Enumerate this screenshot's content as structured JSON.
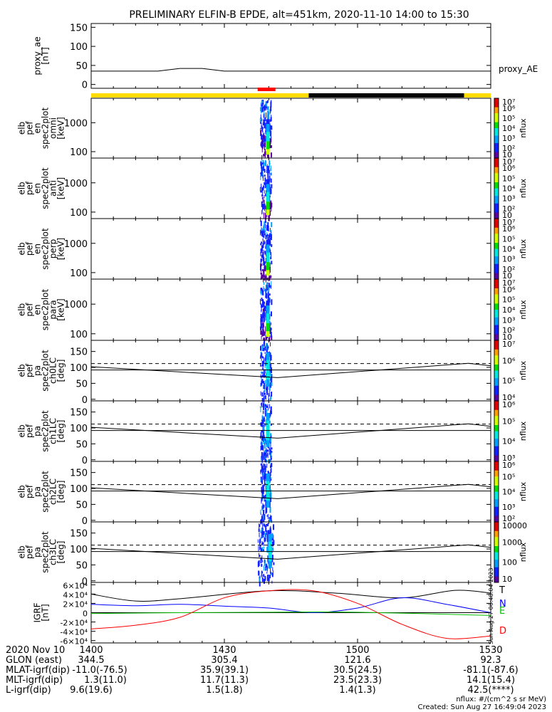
{
  "title": "PRELIMINARY ELFIN-B EPDE, alt=451km, 2020-11-10 14:00 to 15:30",
  "bottom_table": {
    "header_label": "2020 Nov 10",
    "time_ticks": [
      "1400",
      "1430",
      "1500",
      "1530"
    ],
    "rows": [
      {
        "label": "GLON (east)",
        "values": [
          "344.5",
          "305.4",
          "121.6",
          "92.3"
        ]
      },
      {
        "label": "MLAT-igrf(dip)",
        "values": [
          "-11.0(-76.5)",
          "35.9(39.1)",
          "30.5(24.5)",
          "-81.1(-87.6)"
        ]
      },
      {
        "label": "MLT-igrf(dip)",
        "values": [
          "1.3(11.0)",
          "11.7(11.3)",
          "23.5(23.3)",
          "14.1(15.4)"
        ]
      },
      {
        "label": "L-igrf(dip)",
        "values": [
          "9.6(19.6)",
          "1.5(1.8)",
          "1.4(1.3)",
          "42.5(****)"
        ]
      }
    ]
  },
  "footer": {
    "units": "nflux: #/(cm^2 s sr MeV)",
    "created": "Created: Sun Aug 27 16:49:04 2023",
    "side_stamp": "Sun Aug 27 06:48:04 2023"
  },
  "colors": {
    "day_bar": "#ffdd00",
    "night_bar": "#000000",
    "science_zone": "#ff0000",
    "trace_T": "#000000",
    "trace_N": "#0000ff",
    "trace_E": "#00c000",
    "trace_D": "#ff0000"
  },
  "bars": {
    "segments": [
      {
        "start_min": 0,
        "end_min": 49,
        "state": "day"
      },
      {
        "start_min": 49,
        "end_min": 84,
        "state": "night"
      },
      {
        "start_min": 84,
        "end_min": 90,
        "state": "day"
      }
    ],
    "science_zone": {
      "start_min": 37.5,
      "end_min": 41.5
    }
  },
  "chart_data": [
    {
      "type": "line",
      "panel": "proxy_ae",
      "ylabel": [
        "proxy_ae",
        "[nT]"
      ],
      "legend": "proxy_AE",
      "yticks": [
        "0",
        "50",
        "100",
        "150"
      ],
      "ylim": [
        -10,
        160
      ],
      "x_min": [
        0,
        15,
        20,
        25,
        30,
        90
      ],
      "y": [
        35,
        35,
        42,
        42,
        35,
        35
      ]
    },
    {
      "type": "heatmap",
      "panel": "spec_omni",
      "ylabel": [
        "elb",
        "pef",
        "en",
        "spec2plot",
        "omni",
        "[keV]"
      ],
      "yscale": "log",
      "yticks": [
        "100",
        "1000"
      ],
      "ylim": [
        60,
        7000
      ],
      "colorbar": {
        "label": "nflux",
        "ticks": [
          "10",
          "10²",
          "10³",
          "10⁴",
          "10⁵",
          "10⁶",
          "10⁷"
        ]
      },
      "active_interval_min": [
        38,
        40.5
      ]
    },
    {
      "type": "heatmap",
      "panel": "spec_anti",
      "ylabel": [
        "elb",
        "pef",
        "en",
        "spec2plot",
        "anti",
        "[keV]"
      ],
      "yscale": "log",
      "yticks": [
        "100",
        "1000"
      ],
      "ylim": [
        60,
        7000
      ],
      "colorbar": {
        "label": "nflux",
        "ticks": [
          "10",
          "10²",
          "10³",
          "10⁴",
          "10⁵",
          "10⁶",
          "10⁷"
        ]
      },
      "active_interval_min": [
        38,
        40.5
      ]
    },
    {
      "type": "heatmap",
      "panel": "spec_perp",
      "ylabel": [
        "elb",
        "pef",
        "en",
        "spec2plot",
        "perp",
        "[keV]"
      ],
      "yscale": "log",
      "yticks": [
        "100",
        "1000"
      ],
      "ylim": [
        60,
        7000
      ],
      "colorbar": {
        "label": "nflux",
        "ticks": [
          "10",
          "10²",
          "10³",
          "10⁴",
          "10⁵",
          "10⁶",
          "10⁷"
        ]
      },
      "active_interval_min": [
        38,
        40.5
      ]
    },
    {
      "type": "heatmap",
      "panel": "spec_para",
      "ylabel": [
        "elb",
        "pef",
        "en",
        "spec2plot",
        "para",
        "[keV]"
      ],
      "yscale": "log",
      "yticks": [
        "100",
        "1000"
      ],
      "ylim": [
        60,
        7000
      ],
      "colorbar": {
        "label": "nflux",
        "ticks": [
          "10",
          "10²",
          "10³",
          "10⁴",
          "10⁵",
          "10⁶",
          "10⁷"
        ]
      },
      "active_interval_min": [
        38,
        40.5
      ]
    },
    {
      "type": "heatmap",
      "panel": "pa_ch0",
      "ylabel": [
        "elb",
        "pef",
        "pa",
        "spec2plot",
        "ch0LC",
        "[deg]"
      ],
      "yticks": [
        "0",
        "50",
        "100",
        "150"
      ],
      "ylim": [
        -5,
        185
      ],
      "colorbar": {
        "label": "nflux",
        "ticks": [
          "10⁴",
          "10⁵",
          "10⁶",
          "10⁷"
        ]
      },
      "lc_line": {
        "x_min": [
          0,
          42,
          85,
          90
        ],
        "y": [
          102,
          68,
          113,
          105
        ]
      },
      "blc_line": {
        "x_min": [
          0,
          90
        ],
        "y": [
          112,
          112
        ]
      },
      "ref_line_y": 92,
      "active_interval_min": [
        38,
        40.5
      ]
    },
    {
      "type": "heatmap",
      "panel": "pa_ch1",
      "ylabel": [
        "elb",
        "pef",
        "pa",
        "spec2plot",
        "ch1LC",
        "[deg]"
      ],
      "yticks": [
        "0",
        "50",
        "100",
        "150"
      ],
      "ylim": [
        -5,
        185
      ],
      "colorbar": {
        "label": "nflux",
        "ticks": [
          "10³",
          "10⁴",
          "10⁵",
          "10⁶"
        ]
      },
      "lc_line": {
        "x_min": [
          0,
          42,
          85,
          90
        ],
        "y": [
          102,
          68,
          113,
          105
        ]
      },
      "blc_line": {
        "x_min": [
          0,
          90
        ],
        "y": [
          112,
          112
        ]
      },
      "ref_line_y": 92,
      "active_interval_min": [
        38,
        40.5
      ]
    },
    {
      "type": "heatmap",
      "panel": "pa_ch2",
      "ylabel": [
        "elb",
        "pef",
        "pa",
        "spec2plot",
        "ch2LC",
        "[deg]"
      ],
      "yticks": [
        "0",
        "50",
        "100",
        "150"
      ],
      "ylim": [
        -5,
        185
      ],
      "colorbar": {
        "label": "nflux",
        "ticks": [
          "10²",
          "10³",
          "10⁴",
          "10⁵",
          "10⁶"
        ]
      },
      "lc_line": {
        "x_min": [
          0,
          42,
          85,
          90
        ],
        "y": [
          102,
          68,
          113,
          105
        ]
      },
      "blc_line": {
        "x_min": [
          0,
          90
        ],
        "y": [
          112,
          112
        ]
      },
      "ref_line_y": 92,
      "active_interval_min": [
        38,
        40.5
      ]
    },
    {
      "type": "heatmap",
      "panel": "pa_ch3",
      "ylabel": [
        "elb",
        "pef",
        "pa",
        "spec2plot",
        "ch3LC",
        "[deg]"
      ],
      "yticks": [
        "0",
        "50",
        "100",
        "150"
      ],
      "ylim": [
        -5,
        185
      ],
      "colorbar": {
        "label": "nflux",
        "ticks": [
          "10",
          "100",
          "1000",
          "10000"
        ]
      },
      "lc_line": {
        "x_min": [
          0,
          42,
          85,
          90
        ],
        "y": [
          102,
          68,
          113,
          105
        ]
      },
      "blc_line": {
        "x_min": [
          0,
          90
        ],
        "y": [
          112,
          112
        ]
      },
      "ref_line_y": 92,
      "active_interval_min": [
        37.5,
        41
      ]
    },
    {
      "type": "line",
      "panel": "igrf",
      "ylabel": [
        "IGRF",
        "[nT]"
      ],
      "yticks": [
        "-6×10⁴",
        "-4×10⁴",
        "-2×10⁴",
        "0",
        "2×10⁴",
        "4×10⁴",
        "6×10⁴"
      ],
      "ylim": [
        -65000,
        65000
      ],
      "series": [
        {
          "name": "T",
          "color": "#000000",
          "x_min": [
            0,
            10,
            20,
            40,
            55,
            70,
            82,
            90
          ],
          "y": [
            40000,
            25000,
            30000,
            47000,
            42000,
            32000,
            48000,
            42000
          ]
        },
        {
          "name": "N",
          "color": "#0000ff",
          "x_min": [
            0,
            10,
            20,
            30,
            40,
            50,
            60,
            70,
            80,
            90
          ],
          "y": [
            18000,
            15000,
            18000,
            14000,
            10000,
            0,
            10000,
            32000,
            18000,
            0
          ]
        },
        {
          "name": "E",
          "color": "#00c000",
          "x_min": [
            0,
            20,
            40,
            60,
            90
          ],
          "y": [
            -2000,
            0,
            1000,
            1000,
            -6000
          ]
        },
        {
          "name": "D",
          "color": "#ff0000",
          "x_min": [
            0,
            10,
            20,
            30,
            40,
            50,
            60,
            70,
            80,
            90
          ],
          "y": [
            -35000,
            -27000,
            -10000,
            32000,
            47000,
            47000,
            20000,
            -25000,
            -55000,
            -50000
          ]
        }
      ]
    }
  ]
}
